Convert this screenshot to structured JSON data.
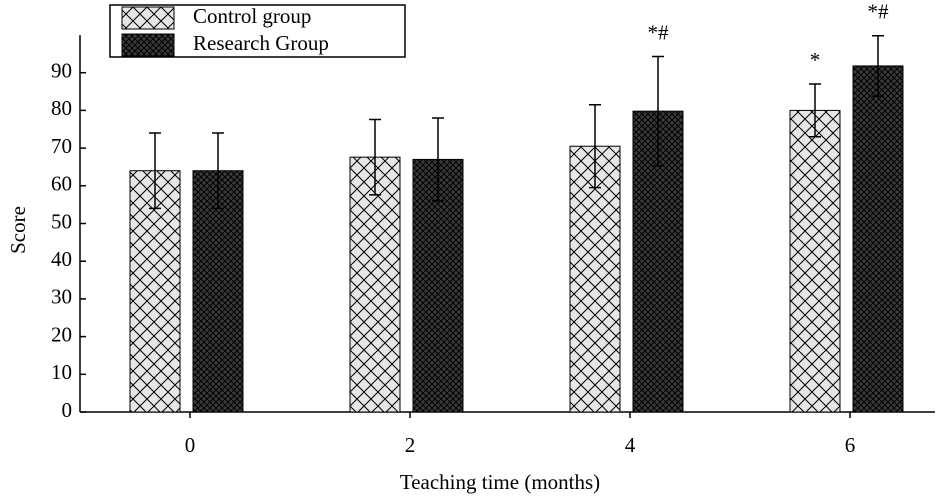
{
  "chart_data": {
    "type": "bar",
    "categories": [
      "0",
      "2",
      "4",
      "6"
    ],
    "series": [
      {
        "name": "Control group",
        "color": "#e6e6e6",
        "values": [
          64,
          67.6,
          70.5,
          80
        ],
        "errors": [
          10,
          10,
          11,
          7
        ],
        "annotations": [
          null,
          null,
          null,
          "*"
        ]
      },
      {
        "name": "Research Group",
        "color": "#3a3a3a",
        "values": [
          64,
          67,
          79.8,
          91.8
        ],
        "errors": [
          10,
          11,
          14.5,
          8
        ],
        "annotations": [
          null,
          null,
          "*#",
          "*#"
        ]
      }
    ],
    "xlabel": "Teaching time (months)",
    "ylabel": "Score",
    "ylim": [
      0,
      100
    ],
    "yticks": [
      0,
      10,
      20,
      30,
      40,
      50,
      60,
      70,
      80,
      90
    ],
    "grid": false,
    "legend": "upper left"
  }
}
